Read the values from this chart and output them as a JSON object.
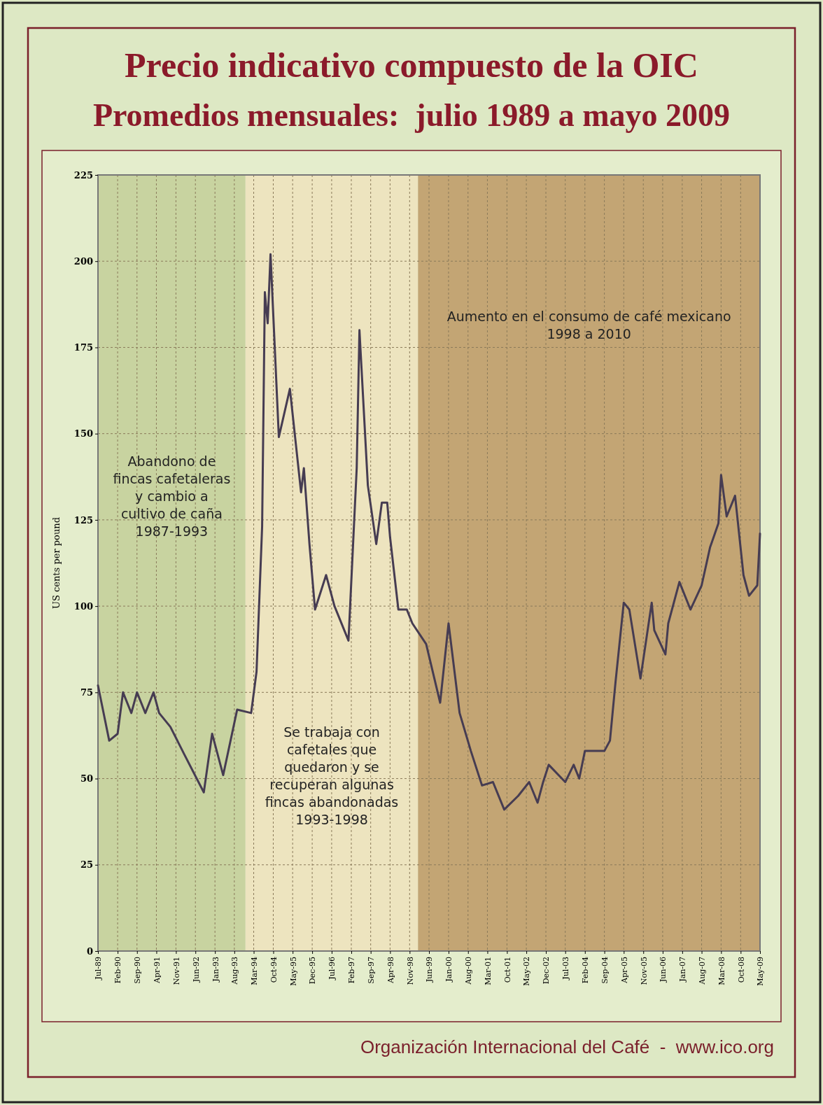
{
  "chart_data": {
    "type": "line",
    "title": "Precio indicativo compuesto de la OIC",
    "subtitle": "Promedios mensuales:  julio 1989 a mayo 2009",
    "ylabel": "US cents per pound",
    "annotations": [
      "Organización Internacional del Café  -  www.ico.org"
    ],
    "xlim": [
      "1989-07",
      "2009-05"
    ],
    "xticks": [
      {
        "value": "1989-07",
        "label": "Jul-89"
      },
      {
        "value": "1990-02",
        "label": "Feb-90"
      },
      {
        "value": "1990-09",
        "label": "Sep-90"
      },
      {
        "value": "1991-04",
        "label": "Apr-91"
      },
      {
        "value": "1991-11",
        "label": "Nov-91"
      },
      {
        "value": "1992-06",
        "label": "Jun-92"
      },
      {
        "value": "1993-01",
        "label": "Jan-93"
      },
      {
        "value": "1993-08",
        "label": "Aug-93"
      },
      {
        "value": "1994-03",
        "label": "Mar-94"
      },
      {
        "value": "1994-10",
        "label": "Oct-94"
      },
      {
        "value": "1995-05",
        "label": "May-95"
      },
      {
        "value": "1995-12",
        "label": "Dec-95"
      },
      {
        "value": "1996-07",
        "label": "Jul-96"
      },
      {
        "value": "1997-02",
        "label": "Feb-97"
      },
      {
        "value": "1997-09",
        "label": "Sep-97"
      },
      {
        "value": "1998-04",
        "label": "Apr-98"
      },
      {
        "value": "1998-11",
        "label": "Nov-98"
      },
      {
        "value": "1999-06",
        "label": "Jun-99"
      },
      {
        "value": "2000-01",
        "label": "Jan-00"
      },
      {
        "value": "2000-08",
        "label": "Aug-00"
      },
      {
        "value": "2001-03",
        "label": "Mar-01"
      },
      {
        "value": "2001-10",
        "label": "Oct-01"
      },
      {
        "value": "2002-05",
        "label": "May-02"
      },
      {
        "value": "2002-12",
        "label": "Dec-02"
      },
      {
        "value": "2003-07",
        "label": "Jul-03"
      },
      {
        "value": "2004-02",
        "label": "Feb-04"
      },
      {
        "value": "2004-09",
        "label": "Sep-04"
      },
      {
        "value": "2005-04",
        "label": "Apr-05"
      },
      {
        "value": "2005-11",
        "label": "Nov-05"
      },
      {
        "value": "2006-06",
        "label": "Jun-06"
      },
      {
        "value": "2007-01",
        "label": "Jan-07"
      },
      {
        "value": "2007-08",
        "label": "Aug-07"
      },
      {
        "value": "2008-03",
        "label": "Mar-08"
      },
      {
        "value": "2008-10",
        "label": "Oct-08"
      },
      {
        "value": "2009-05",
        "label": "May-09"
      }
    ],
    "ylim": [
      0,
      225
    ],
    "yticks": [
      0,
      25,
      50,
      75,
      100,
      125,
      150,
      175,
      200,
      225
    ],
    "grid": true,
    "bands": [
      {
        "axis": "x",
        "from": "1989-07",
        "to": "1993-12",
        "label": "Abandono de\nfincas cafetaleras\ny cambio a\ncultivo de caña\n1987-1993",
        "color": "#c8d3a0"
      },
      {
        "axis": "x",
        "from": "1993-12",
        "to": "1999-02",
        "label": "Se trabaja con\ncafetales que\nquedaron y se\nrecuperan algunas\nfincas abandonadas\n1993-1998",
        "color": "#ede4bf"
      },
      {
        "axis": "x",
        "from": "1999-02",
        "to": "2009-05",
        "label": "Aumento en el consumo de café mexicano\n1998 a 2010",
        "color": "#c3a574"
      }
    ],
    "series": [
      {
        "color": "#463c52",
        "x": [
          "1989-07",
          "1989-11",
          "1990-02",
          "1990-04",
          "1990-07",
          "1990-09",
          "1990-12",
          "1991-03",
          "1991-05",
          "1991-09",
          "1992-02",
          "1992-09",
          "1992-12",
          "1993-04",
          "1993-09",
          "1994-02",
          "1994-04",
          "1994-06",
          "1994-07",
          "1994-08",
          "1994-09",
          "1994-12",
          "1995-04",
          "1995-08",
          "1995-09",
          "1995-11",
          "1996-01",
          "1996-05",
          "1996-08",
          "1997-01",
          "1997-04",
          "1997-05",
          "1997-08",
          "1997-11",
          "1998-01",
          "1998-03",
          "1998-04",
          "1998-07",
          "1998-10",
          "1998-12",
          "1999-05",
          "1999-10",
          "2000-01",
          "2000-05",
          "2000-09",
          "2001-01",
          "2001-05",
          "2001-09",
          "2002-02",
          "2002-06",
          "2002-09",
          "2002-11",
          "2003-01",
          "2003-07",
          "2003-10",
          "2003-12",
          "2004-02",
          "2004-09",
          "2004-11",
          "2005-01",
          "2005-04",
          "2005-06",
          "2005-10",
          "2006-02",
          "2006-03",
          "2006-07",
          "2006-08",
          "2006-12",
          "2007-04",
          "2007-08",
          "2007-11",
          "2008-02",
          "2008-03",
          "2008-05",
          "2008-08",
          "2008-11",
          "2009-01",
          "2009-04",
          "2009-05"
        ],
        "values": [
          77,
          61,
          63,
          75,
          69,
          75,
          69,
          75,
          69,
          65,
          57,
          46,
          63,
          51,
          70,
          69,
          81,
          123,
          191,
          182,
          202,
          149,
          163,
          133,
          140,
          118,
          99,
          109,
          100,
          90,
          140,
          180,
          135,
          118,
          130,
          130,
          120,
          99,
          99,
          95,
          89,
          72,
          95,
          69,
          58,
          48,
          49,
          41,
          45,
          49,
          43,
          49,
          54,
          49,
          54,
          50,
          58,
          58,
          61,
          78,
          101,
          99,
          79,
          101,
          93,
          86,
          95,
          107,
          99,
          106,
          117,
          124,
          138,
          126,
          132,
          109,
          103,
          106,
          121
        ]
      }
    ]
  }
}
